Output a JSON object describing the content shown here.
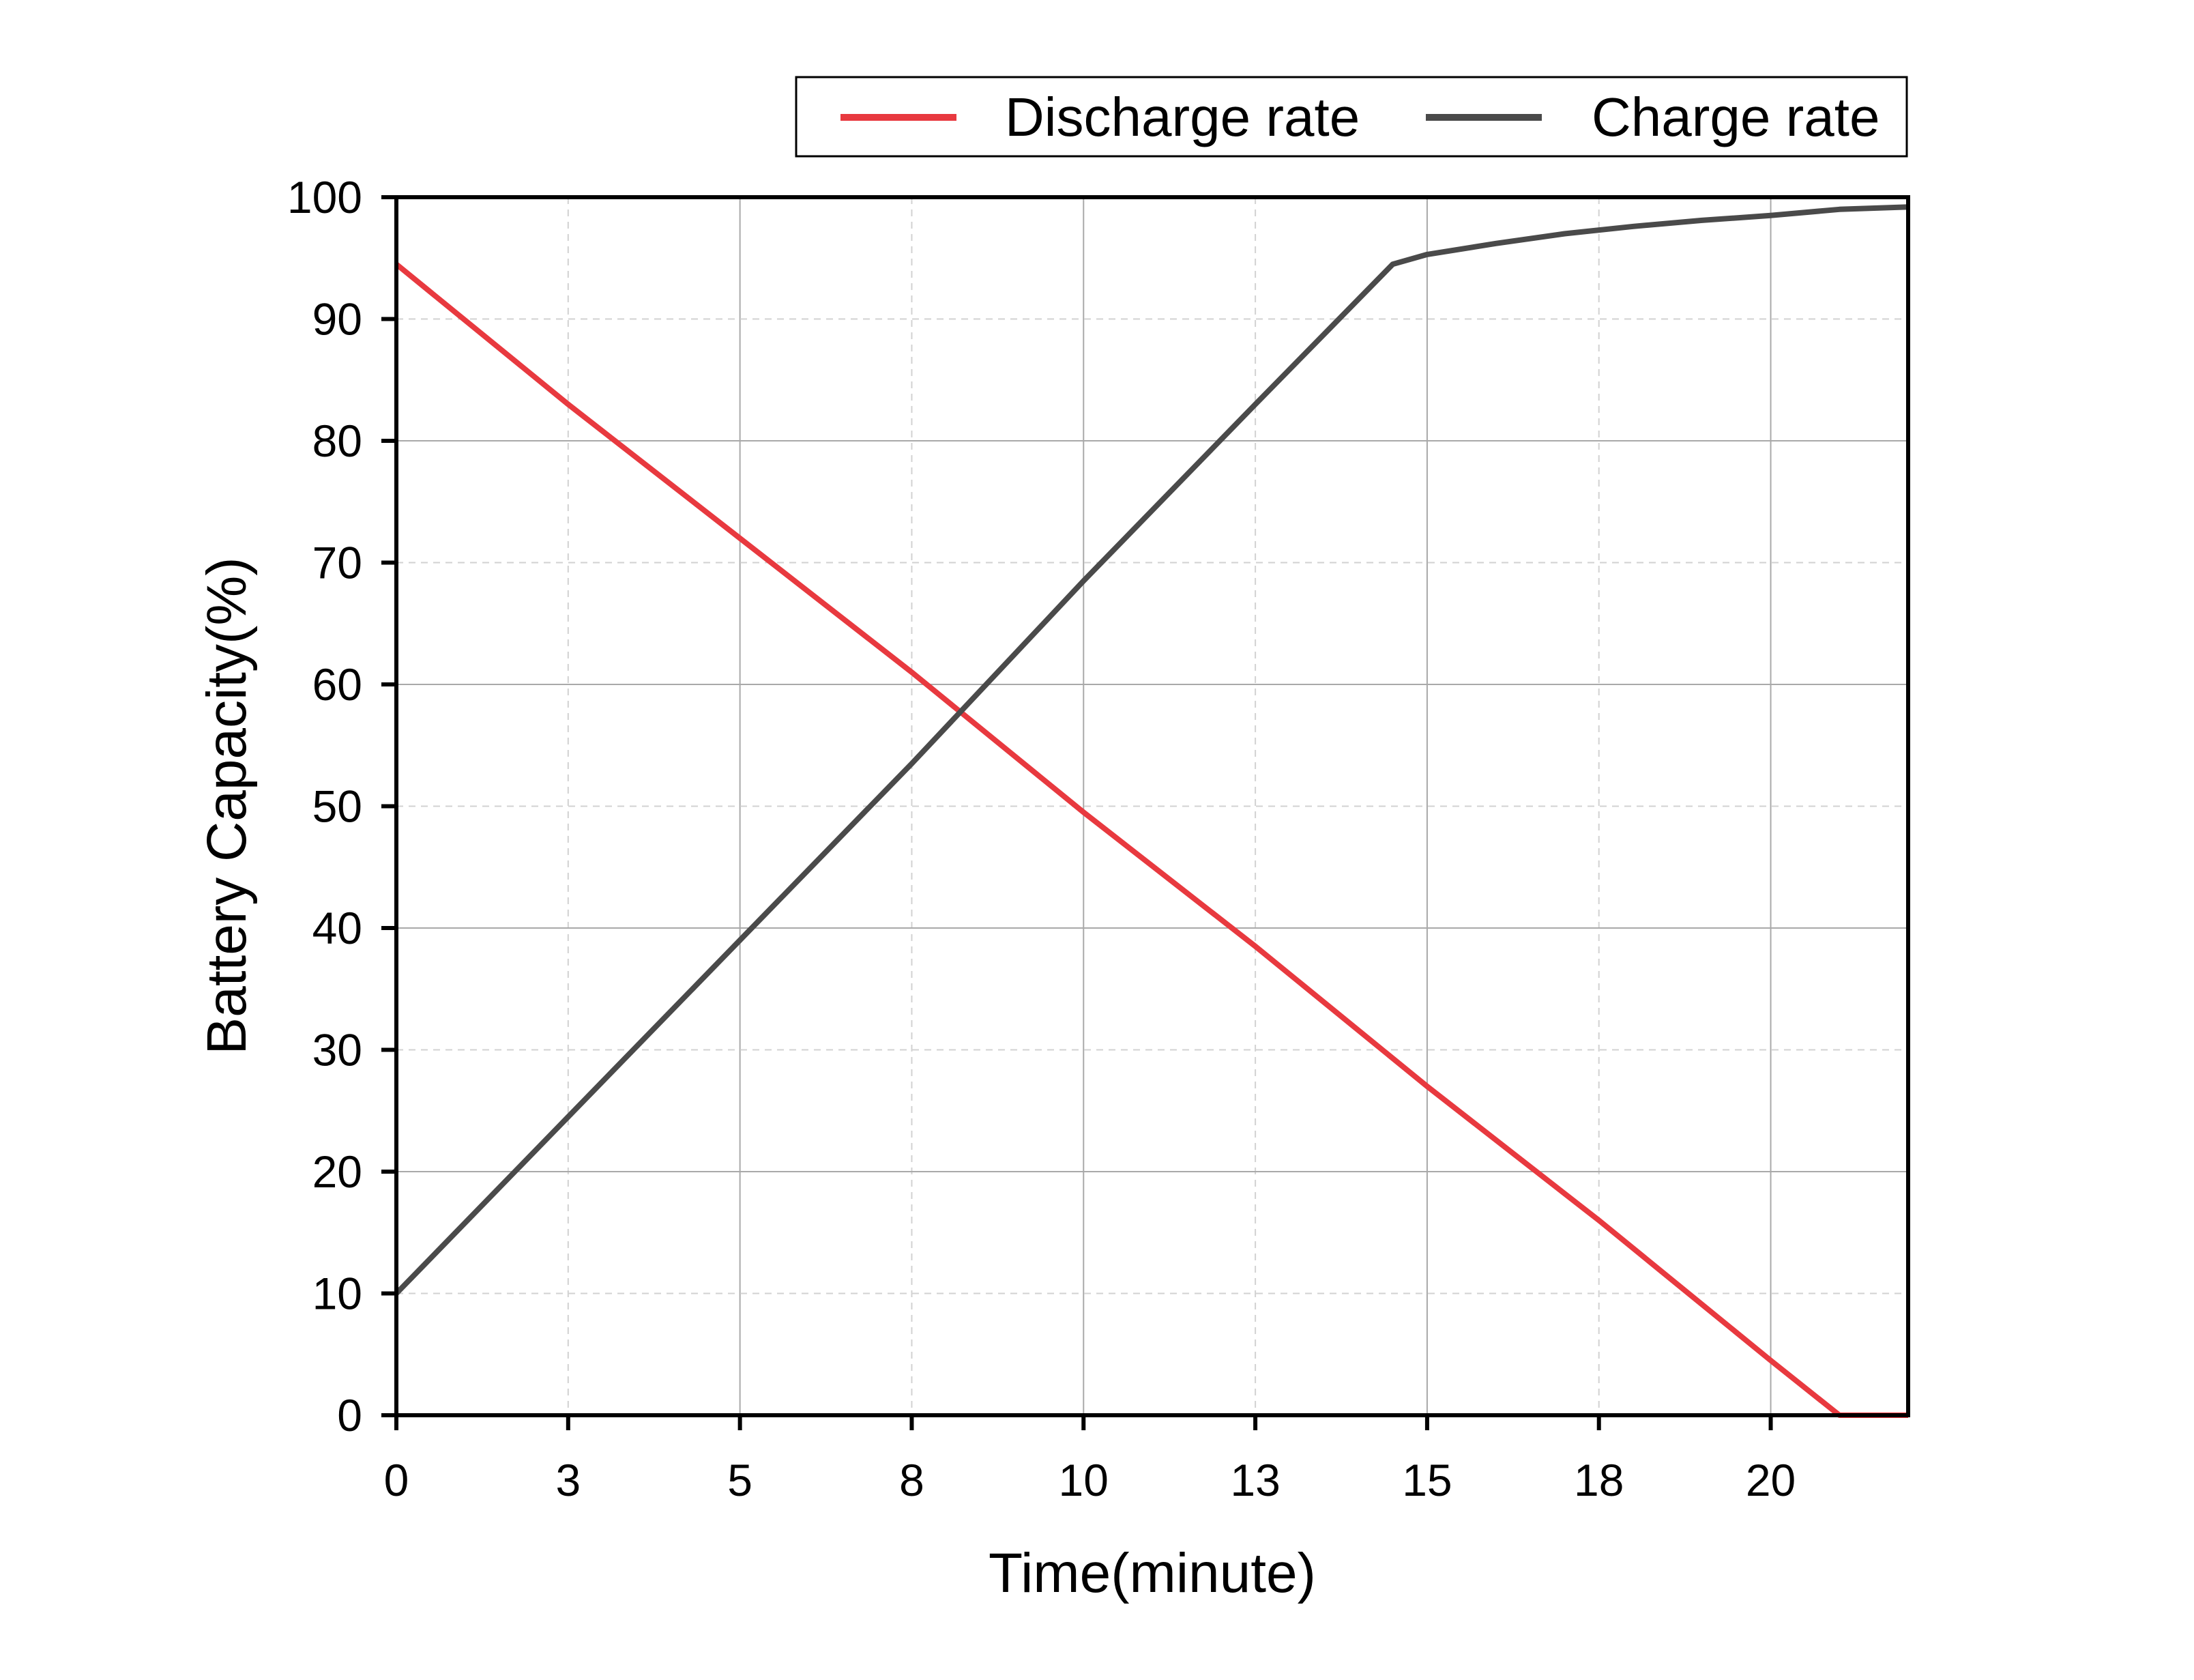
{
  "chart_data": {
    "type": "line",
    "title": "",
    "xlabel": "Time(minute)",
    "ylabel": "Battery Capacity(%)",
    "xlim": [
      0,
      22
    ],
    "ylim": [
      0,
      100
    ],
    "grid": true,
    "legend_position": "top-right",
    "x_ticks": [
      {
        "value": 0,
        "label": "0"
      },
      {
        "value": 2.5,
        "label": "3"
      },
      {
        "value": 5,
        "label": "5"
      },
      {
        "value": 7.5,
        "label": "8"
      },
      {
        "value": 10,
        "label": "10"
      },
      {
        "value": 12.5,
        "label": "13"
      },
      {
        "value": 15,
        "label": "15"
      },
      {
        "value": 17.5,
        "label": "18"
      },
      {
        "value": 20,
        "label": "20"
      }
    ],
    "y_ticks": [
      {
        "value": 0,
        "label": "0"
      },
      {
        "value": 10,
        "label": "10"
      },
      {
        "value": 20,
        "label": "20"
      },
      {
        "value": 30,
        "label": "30"
      },
      {
        "value": 40,
        "label": "40"
      },
      {
        "value": 50,
        "label": "50"
      },
      {
        "value": 60,
        "label": "60"
      },
      {
        "value": 70,
        "label": "70"
      },
      {
        "value": 80,
        "label": "80"
      },
      {
        "value": 90,
        "label": "90"
      },
      {
        "value": 100,
        "label": "100"
      }
    ],
    "series": [
      {
        "name": "Discharge rate",
        "color": "#e8393f",
        "x": [
          0,
          2.5,
          5,
          7.5,
          10,
          12.5,
          15,
          17.5,
          20,
          21,
          22
        ],
        "y": [
          94.5,
          83,
          72,
          61,
          49.5,
          38.5,
          27,
          16,
          4.5,
          0,
          0
        ]
      },
      {
        "name": "Charge rate",
        "color": "#4a4a4a",
        "x": [
          0,
          2.5,
          5,
          7.5,
          10,
          12.5,
          14.5,
          15,
          16,
          17,
          18,
          19,
          20,
          21,
          22
        ],
        "y": [
          10,
          24.5,
          39,
          53.5,
          68.5,
          83,
          94.5,
          95.3,
          96.2,
          97,
          97.6,
          98.1,
          98.5,
          99,
          99.2
        ]
      }
    ]
  }
}
